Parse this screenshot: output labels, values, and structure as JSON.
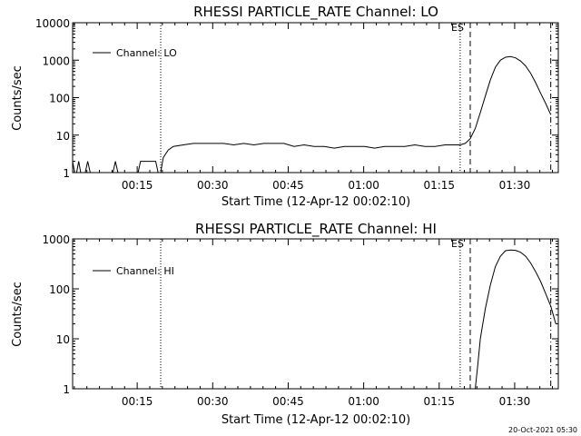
{
  "chart_data": [
    {
      "type": "line",
      "title": "RHESSI PARTICLE_RATE Channel: LO",
      "xlabel": "Start Time (12-Apr-12 00:02:10)",
      "ylabel": "Counts/sec",
      "yscale": "log",
      "ylim": [
        1,
        10000
      ],
      "ytick_labels": [
        "1",
        "10",
        "100",
        "1000",
        "10000"
      ],
      "xlim_min_from_start": [
        0,
        96.5
      ],
      "xtick_labels": [
        "00:15",
        "00:30",
        "00:45",
        "01:00",
        "01:15",
        "01:30"
      ],
      "legend": "Channel: LO",
      "marker_label": "ES",
      "vlines_min": {
        "dotted": [
          17.5,
          77.0
        ],
        "dashed": 79.0,
        "dashdot": 95.0
      },
      "series": [
        {
          "name": "Channel: LO",
          "t_min": [
            0,
            0.4,
            0.8,
            1.2,
            1.6,
            2.0,
            2.5,
            3.0,
            3.5,
            4.0,
            4.5,
            5.0,
            5.5,
            6.0,
            6.5,
            7.0,
            7.5,
            8.0,
            8.5,
            9.0,
            9.5,
            10.0,
            10.5,
            11.0,
            11.5,
            12.0,
            12.5,
            13.0,
            13.5,
            14.0,
            14.5,
            15.0,
            15.5,
            16.0,
            16.5,
            17.0,
            17.5,
            18.0,
            19.0,
            20.0,
            22.0,
            24.0,
            26.0,
            28.0,
            30.0,
            32.0,
            34.0,
            36.0,
            38.0,
            40.0,
            42.0,
            44.0,
            46.0,
            48.0,
            50.0,
            52.0,
            54.0,
            56.0,
            58.0,
            60.0,
            62.0,
            64.0,
            66.0,
            68.0,
            70.0,
            72.0,
            74.0,
            76.0,
            77.0,
            78.0,
            79.0,
            80.0,
            81.0,
            82.0,
            83.0,
            84.0,
            85.0,
            86.0,
            87.0,
            88.0,
            89.0,
            90.0,
            91.0,
            92.0,
            93.0,
            94.0,
            95.0,
            96.0
          ],
          "counts": [
            2,
            1,
            1,
            2,
            1,
            1,
            1,
            2,
            1,
            1,
            1,
            1,
            1,
            1,
            1,
            1,
            1,
            1,
            2,
            1,
            1,
            1,
            1,
            1,
            1,
            1,
            1,
            1,
            2,
            2,
            2,
            2,
            2,
            2,
            2,
            1,
            1,
            2.5,
            4,
            5,
            5.5,
            6,
            6,
            6,
            6,
            5.5,
            6,
            5.5,
            6,
            6,
            6,
            5,
            5.5,
            5,
            5,
            4.5,
            5,
            5,
            5,
            4.5,
            5,
            5,
            5,
            5.5,
            5,
            5,
            5.5,
            5.5,
            5.5,
            6,
            8,
            15,
            40,
            110,
            300,
            650,
            1000,
            1200,
            1250,
            1150,
            950,
            700,
            450,
            250,
            130,
            70,
            35
          ]
        }
      ]
    },
    {
      "type": "line",
      "title": "RHESSI PARTICLE_RATE Channel: HI",
      "xlabel": "Start Time (12-Apr-12 00:02:10)",
      "ylabel": "Counts/sec",
      "yscale": "log",
      "ylim": [
        1,
        1000
      ],
      "ytick_labels": [
        "1",
        "10",
        "100",
        "1000"
      ],
      "xlim_min_from_start": [
        0,
        96.5
      ],
      "xtick_labels": [
        "00:15",
        "00:30",
        "00:45",
        "01:00",
        "01:15",
        "01:30"
      ],
      "legend": "Channel: HI",
      "marker_label": "ES",
      "vlines_min": {
        "dotted": [
          17.5,
          77.0
        ],
        "dashed": 79.0,
        "dashdot": 95.0
      },
      "series": [
        {
          "name": "Channel: HI",
          "t_min": [
            80.0,
            80.5,
            81.0,
            82.0,
            83.0,
            84.0,
            85.0,
            86.0,
            87.0,
            88.0,
            89.0,
            90.0,
            91.0,
            92.0,
            93.0,
            94.0,
            95.0,
            96.0
          ],
          "counts": [
            1,
            3,
            10,
            40,
            120,
            280,
            450,
            580,
            600,
            590,
            540,
            450,
            330,
            220,
            140,
            80,
            45,
            20
          ]
        }
      ]
    }
  ],
  "footer": {
    "timestamp": "20-Oct-2021 05:30"
  }
}
